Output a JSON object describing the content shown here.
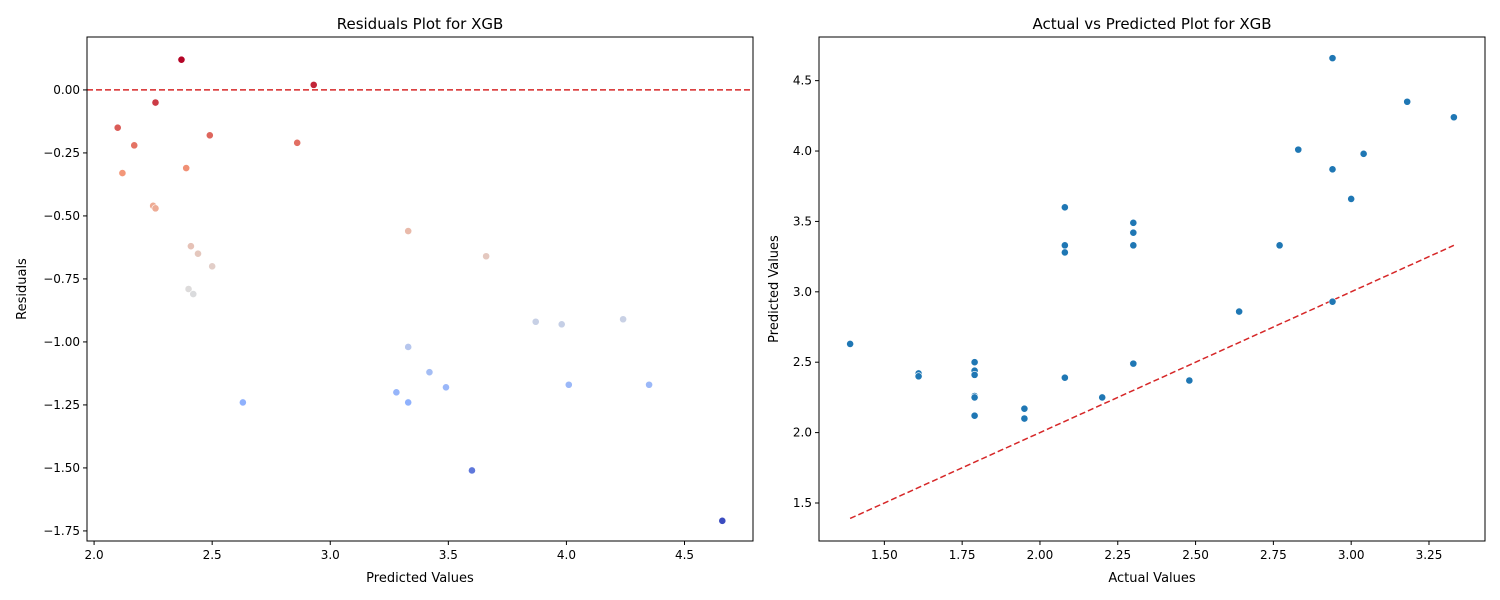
{
  "chart_data": [
    {
      "type": "scatter",
      "title": "Residuals Plot for XGB",
      "xlabel": "Predicted Values",
      "ylabel": "Residuals",
      "xlim": [
        1.97,
        4.79
      ],
      "ylim": [
        -1.79,
        0.21
      ],
      "xticks": [
        2.0,
        2.5,
        3.0,
        3.5,
        4.0,
        4.5
      ],
      "xtick_labels": [
        "2.0",
        "2.5",
        "3.0",
        "3.5",
        "4.0",
        "4.5"
      ],
      "yticks": [
        0.0,
        -0.25,
        -0.5,
        -0.75,
        -1.0,
        -1.25,
        -1.5,
        -1.75
      ],
      "ytick_labels": [
        "0.00",
        "−0.25",
        "−0.50",
        "−0.75",
        "−1.00",
        "−1.25",
        "−1.50",
        "−1.75"
      ],
      "grid": false,
      "colormap": "coolwarm",
      "reference_line": {
        "y": 0.0,
        "style": "dashed",
        "color": "#d62728"
      },
      "points": [
        {
          "x": 2.37,
          "y": 0.12
        },
        {
          "x": 2.93,
          "y": 0.02
        },
        {
          "x": 2.26,
          "y": -0.05
        },
        {
          "x": 2.1,
          "y": -0.15
        },
        {
          "x": 2.49,
          "y": -0.18
        },
        {
          "x": 2.86,
          "y": -0.21
        },
        {
          "x": 2.17,
          "y": -0.22
        },
        {
          "x": 2.39,
          "y": -0.31
        },
        {
          "x": 2.12,
          "y": -0.33
        },
        {
          "x": 2.25,
          "y": -0.46
        },
        {
          "x": 2.26,
          "y": -0.47
        },
        {
          "x": 3.33,
          "y": -0.56
        },
        {
          "x": 2.41,
          "y": -0.62
        },
        {
          "x": 2.44,
          "y": -0.65
        },
        {
          "x": 3.66,
          "y": -0.66
        },
        {
          "x": 2.5,
          "y": -0.7
        },
        {
          "x": 2.4,
          "y": -0.79
        },
        {
          "x": 2.42,
          "y": -0.81
        },
        {
          "x": 4.24,
          "y": -0.91
        },
        {
          "x": 3.87,
          "y": -0.92
        },
        {
          "x": 3.98,
          "y": -0.93
        },
        {
          "x": 3.33,
          "y": -1.02
        },
        {
          "x": 3.42,
          "y": -1.12
        },
        {
          "x": 4.01,
          "y": -1.17
        },
        {
          "x": 4.35,
          "y": -1.17
        },
        {
          "x": 3.49,
          "y": -1.18
        },
        {
          "x": 3.28,
          "y": -1.2
        },
        {
          "x": 2.63,
          "y": -1.24
        },
        {
          "x": 3.33,
          "y": -1.24
        },
        {
          "x": 3.6,
          "y": -1.51
        },
        {
          "x": 4.66,
          "y": -1.71
        }
      ]
    },
    {
      "type": "scatter",
      "title": "Actual vs Predicted Plot for XGB",
      "xlabel": "Actual Values",
      "ylabel": "Predicted Values",
      "xlim": [
        1.29,
        3.43
      ],
      "ylim": [
        1.23,
        4.81
      ],
      "xticks": [
        1.5,
        1.75,
        2.0,
        2.25,
        2.5,
        2.75,
        3.0,
        3.25
      ],
      "xtick_labels": [
        "1.50",
        "1.75",
        "2.00",
        "2.25",
        "2.50",
        "2.75",
        "3.00",
        "3.25"
      ],
      "yticks": [
        1.5,
        2.0,
        2.5,
        3.0,
        3.5,
        4.0,
        4.5
      ],
      "ytick_labels": [
        "1.5",
        "2.0",
        "2.5",
        "3.0",
        "3.5",
        "4.0",
        "4.5"
      ],
      "grid": false,
      "point_color": "#1f77b4",
      "reference_line": {
        "from": [
          1.39,
          1.39
        ],
        "to": [
          3.33,
          3.33
        ],
        "style": "dashed",
        "color": "#d62728"
      },
      "points": [
        {
          "x": 2.94,
          "y": 4.66
        },
        {
          "x": 3.18,
          "y": 4.35
        },
        {
          "x": 3.33,
          "y": 4.24
        },
        {
          "x": 2.83,
          "y": 4.01
        },
        {
          "x": 3.04,
          "y": 3.98
        },
        {
          "x": 2.94,
          "y": 3.87
        },
        {
          "x": 3.0,
          "y": 3.66
        },
        {
          "x": 2.08,
          "y": 3.6
        },
        {
          "x": 2.3,
          "y": 3.49
        },
        {
          "x": 2.3,
          "y": 3.42
        },
        {
          "x": 2.08,
          "y": 3.33
        },
        {
          "x": 2.3,
          "y": 3.33
        },
        {
          "x": 2.77,
          "y": 3.33
        },
        {
          "x": 2.08,
          "y": 3.28
        },
        {
          "x": 2.94,
          "y": 2.93
        },
        {
          "x": 2.64,
          "y": 2.86
        },
        {
          "x": 1.39,
          "y": 2.63
        },
        {
          "x": 1.79,
          "y": 2.5
        },
        {
          "x": 2.3,
          "y": 2.49
        },
        {
          "x": 1.79,
          "y": 2.44
        },
        {
          "x": 1.61,
          "y": 2.42
        },
        {
          "x": 1.79,
          "y": 2.41
        },
        {
          "x": 1.61,
          "y": 2.4
        },
        {
          "x": 2.08,
          "y": 2.39
        },
        {
          "x": 2.48,
          "y": 2.37
        },
        {
          "x": 1.79,
          "y": 2.26
        },
        {
          "x": 1.79,
          "y": 2.25
        },
        {
          "x": 2.2,
          "y": 2.25
        },
        {
          "x": 1.95,
          "y": 2.17
        },
        {
          "x": 1.79,
          "y": 2.12
        },
        {
          "x": 1.95,
          "y": 2.1
        }
      ]
    }
  ]
}
